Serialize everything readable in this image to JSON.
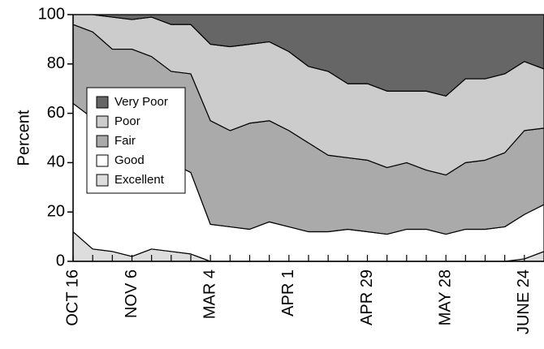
{
  "chart_data": {
    "type": "stacked_area",
    "y_label": "Percent",
    "categories": [
      "OCT 16",
      null,
      null,
      "NOV 6",
      null,
      null,
      null,
      "MAR 4",
      null,
      null,
      null,
      "APR 1",
      null,
      null,
      null,
      "APR 29",
      null,
      null,
      null,
      "MAY 28",
      null,
      null,
      null,
      "JUNE 24",
      null
    ],
    "series": [
      {
        "name": "Excellent",
        "color": "#dddddd",
        "values": [
          12,
          5,
          4,
          2,
          5,
          4,
          3,
          0,
          0,
          0,
          0,
          0,
          0,
          0,
          0,
          0,
          0,
          0,
          0,
          0,
          0,
          0,
          0,
          1,
          4
        ]
      },
      {
        "name": "Good",
        "color": "#ffffff",
        "values": [
          52,
          53,
          48,
          46,
          39,
          36,
          33,
          15,
          14,
          13,
          16,
          14,
          12,
          12,
          13,
          12,
          11,
          13,
          13,
          11,
          13,
          13,
          14,
          18,
          19
        ]
      },
      {
        "name": "Fair",
        "color": "#aaaaaa",
        "values": [
          32,
          35,
          34,
          38,
          39,
          37,
          40,
          42,
          39,
          43,
          41,
          39,
          36,
          31,
          29,
          29,
          27,
          27,
          24,
          24,
          27,
          28,
          30,
          34,
          31
        ]
      },
      {
        "name": "Poor",
        "color": "#cccccc",
        "values": [
          4,
          7,
          13,
          12,
          16,
          19,
          20,
          31,
          34,
          32,
          32,
          32,
          31,
          34,
          30,
          31,
          31,
          29,
          32,
          32,
          34,
          33,
          32,
          28,
          24
        ]
      },
      {
        "name": "Very Poor",
        "color": "#666666",
        "values": [
          0,
          0,
          1,
          2,
          1,
          4,
          4,
          12,
          13,
          12,
          11,
          15,
          21,
          23,
          28,
          28,
          31,
          31,
          31,
          33,
          26,
          26,
          24,
          19,
          22
        ]
      }
    ],
    "ylim": [
      0,
      100
    ],
    "yticks": [
      0,
      20,
      40,
      60,
      80,
      100
    ],
    "legend": "left"
  }
}
